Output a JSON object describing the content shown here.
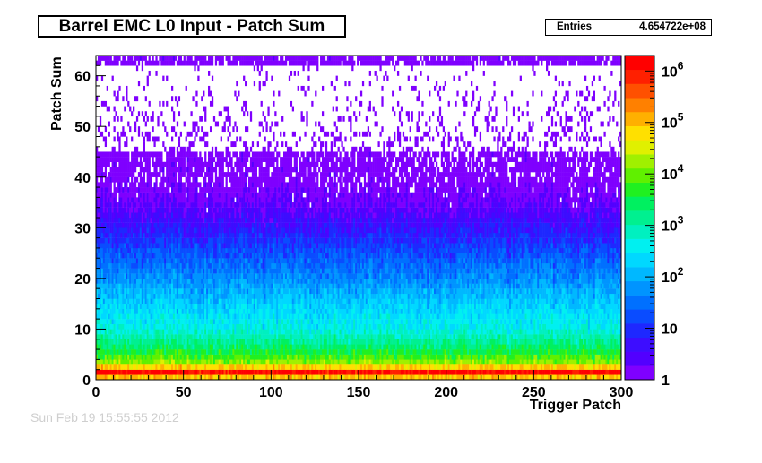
{
  "chart_data": {
    "type": "heatmap",
    "title": "Barrel EMC L0 Input - Patch Sum",
    "xlabel": "Trigger Patch",
    "ylabel": "Patch Sum",
    "xlim": [
      0,
      300
    ],
    "ylim": [
      0,
      64
    ],
    "x_ticks": [
      "0",
      "50",
      "100",
      "150",
      "200",
      "250",
      "300"
    ],
    "y_ticks": [
      "0",
      "10",
      "20",
      "30",
      "40",
      "50",
      "60"
    ],
    "z_scale": "log",
    "z_range": [
      1,
      2000000
    ],
    "z_ticks": [
      {
        "base": "1",
        "exp": ""
      },
      {
        "base": "10",
        "exp": ""
      },
      {
        "base": "10",
        "exp": "2"
      },
      {
        "base": "10",
        "exp": "3"
      },
      {
        "base": "10",
        "exp": "4"
      },
      {
        "base": "10",
        "exp": "5"
      },
      {
        "base": "10",
        "exp": "6"
      }
    ],
    "stats": {
      "label": "Entries",
      "value": "4.654722e+08"
    },
    "palette": [
      "#7f00ff",
      "#5200ff",
      "#3d0dff",
      "#1e28ff",
      "#0a4cff",
      "#0070ff",
      "#0094ff",
      "#00b8ff",
      "#00d8ff",
      "#00f0f0",
      "#00f0c0",
      "#00f090",
      "#00f060",
      "#20f020",
      "#60f000",
      "#a0f000",
      "#e0f000",
      "#ffe000",
      "#ffb000",
      "#ff8000",
      "#ff5000",
      "#ff2000",
      "#ff0000"
    ],
    "approx_profile": [
      {
        "y": 0.5,
        "counts": 100000
      },
      {
        "y": 1.5,
        "counts": 1500000
      },
      {
        "y": 3,
        "counts": 20000
      },
      {
        "y": 6,
        "counts": 3000
      },
      {
        "y": 10,
        "counts": 500
      },
      {
        "y": 15,
        "counts": 200
      },
      {
        "y": 20,
        "counts": 60
      },
      {
        "y": 25,
        "counts": 20
      },
      {
        "y": 30,
        "counts": 6
      },
      {
        "y": 35,
        "counts": 2
      },
      {
        "y": 40,
        "counts": 1
      },
      {
        "y": 62.5,
        "counts": 1
      }
    ]
  },
  "footer": {
    "timestamp": "Sun Feb 19 15:55:55 2012"
  }
}
